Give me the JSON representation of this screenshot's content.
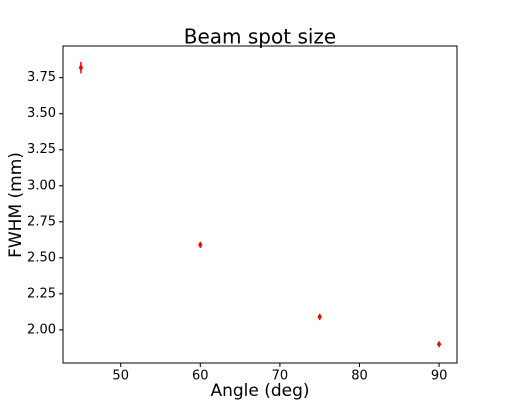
{
  "chart_data": {
    "type": "scatter",
    "title": "Beam spot size",
    "x_label": "Angle (deg)",
    "y_label": "FWHM (mm)",
    "series": [
      {
        "name": "FWHM",
        "color": "#ff0000",
        "x": [
          45,
          60,
          75,
          90
        ],
        "values": [
          3.82,
          2.59,
          2.09,
          1.9
        ],
        "errors": [
          0.04,
          0.02,
          0.02,
          0.01
        ]
      }
    ],
    "xlim": [
      42.75,
      92.25
    ],
    "xticks": [
      50,
      60,
      70,
      80,
      90
    ],
    "ylim": [
      1.77,
      3.97
    ],
    "yticks": [
      {
        "value": 2.0,
        "label": "2.00"
      },
      {
        "value": 2.25,
        "label": "2.25"
      },
      {
        "value": 2.5,
        "label": "2.50"
      },
      {
        "value": 2.75,
        "label": "2.75"
      },
      {
        "value": 3.0,
        "label": "3.00"
      },
      {
        "value": 3.25,
        "label": "3.25"
      },
      {
        "value": 3.5,
        "label": "3.50"
      },
      {
        "value": 3.75,
        "label": "3.75"
      }
    ],
    "grid": false
  }
}
